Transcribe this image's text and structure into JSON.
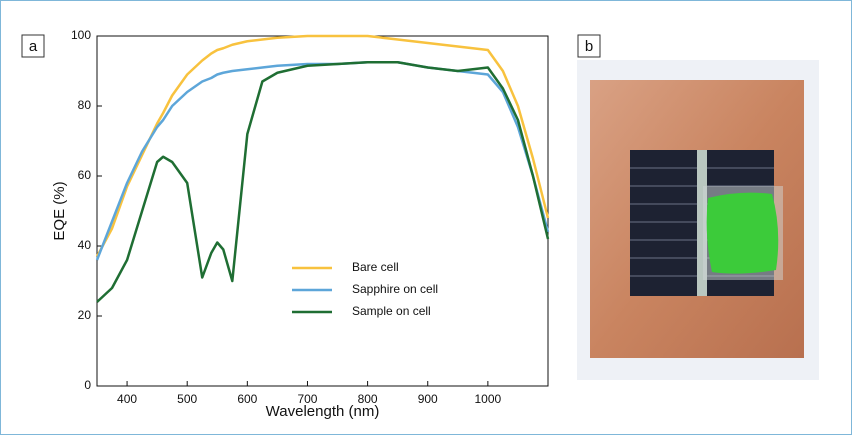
{
  "panel_labels": [
    "a",
    "b"
  ],
  "chart_data": {
    "type": "line",
    "x_label": "Wavelength (nm)",
    "y_label": "EQE (%)",
    "x": [
      350,
      375,
      400,
      425,
      450,
      460,
      475,
      500,
      525,
      540,
      550,
      560,
      575,
      600,
      625,
      650,
      700,
      750,
      800,
      850,
      900,
      950,
      1000,
      1025,
      1050,
      1075,
      1100
    ],
    "series": [
      {
        "name": "Bare cell",
        "color": "#f8c23e",
        "values": [
          37,
          45,
          57,
          66,
          75,
          78,
          83,
          89,
          93,
          95,
          96,
          96.5,
          97.5,
          98.5,
          99,
          99.5,
          100,
          100,
          100,
          99,
          98,
          97,
          96,
          90,
          80,
          65,
          48
        ]
      },
      {
        "name": "Sapphire on cell",
        "color": "#5da6d9",
        "values": [
          36,
          47,
          58,
          67,
          74,
          76,
          80,
          84,
          87,
          88,
          89,
          89.5,
          90,
          90.5,
          91,
          91.5,
          92,
          92,
          92.5,
          92.5,
          91,
          90,
          89,
          84,
          74,
          60,
          44
        ]
      },
      {
        "name": "Sample on cell",
        "color": "#1f6e33",
        "values": [
          24,
          28,
          36,
          50,
          64,
          65.5,
          64,
          58,
          31,
          38,
          41,
          39,
          30,
          72,
          87,
          89.5,
          91.5,
          92,
          92.5,
          92.5,
          91,
          90,
          91,
          85,
          76,
          60,
          42
        ]
      }
    ],
    "xlim": [
      350,
      1100
    ],
    "xticks": [
      400,
      500,
      600,
      700,
      800,
      900,
      1000
    ],
    "ylim": [
      0,
      100
    ],
    "yticks": [
      0,
      20,
      40,
      60,
      80,
      100
    ]
  }
}
